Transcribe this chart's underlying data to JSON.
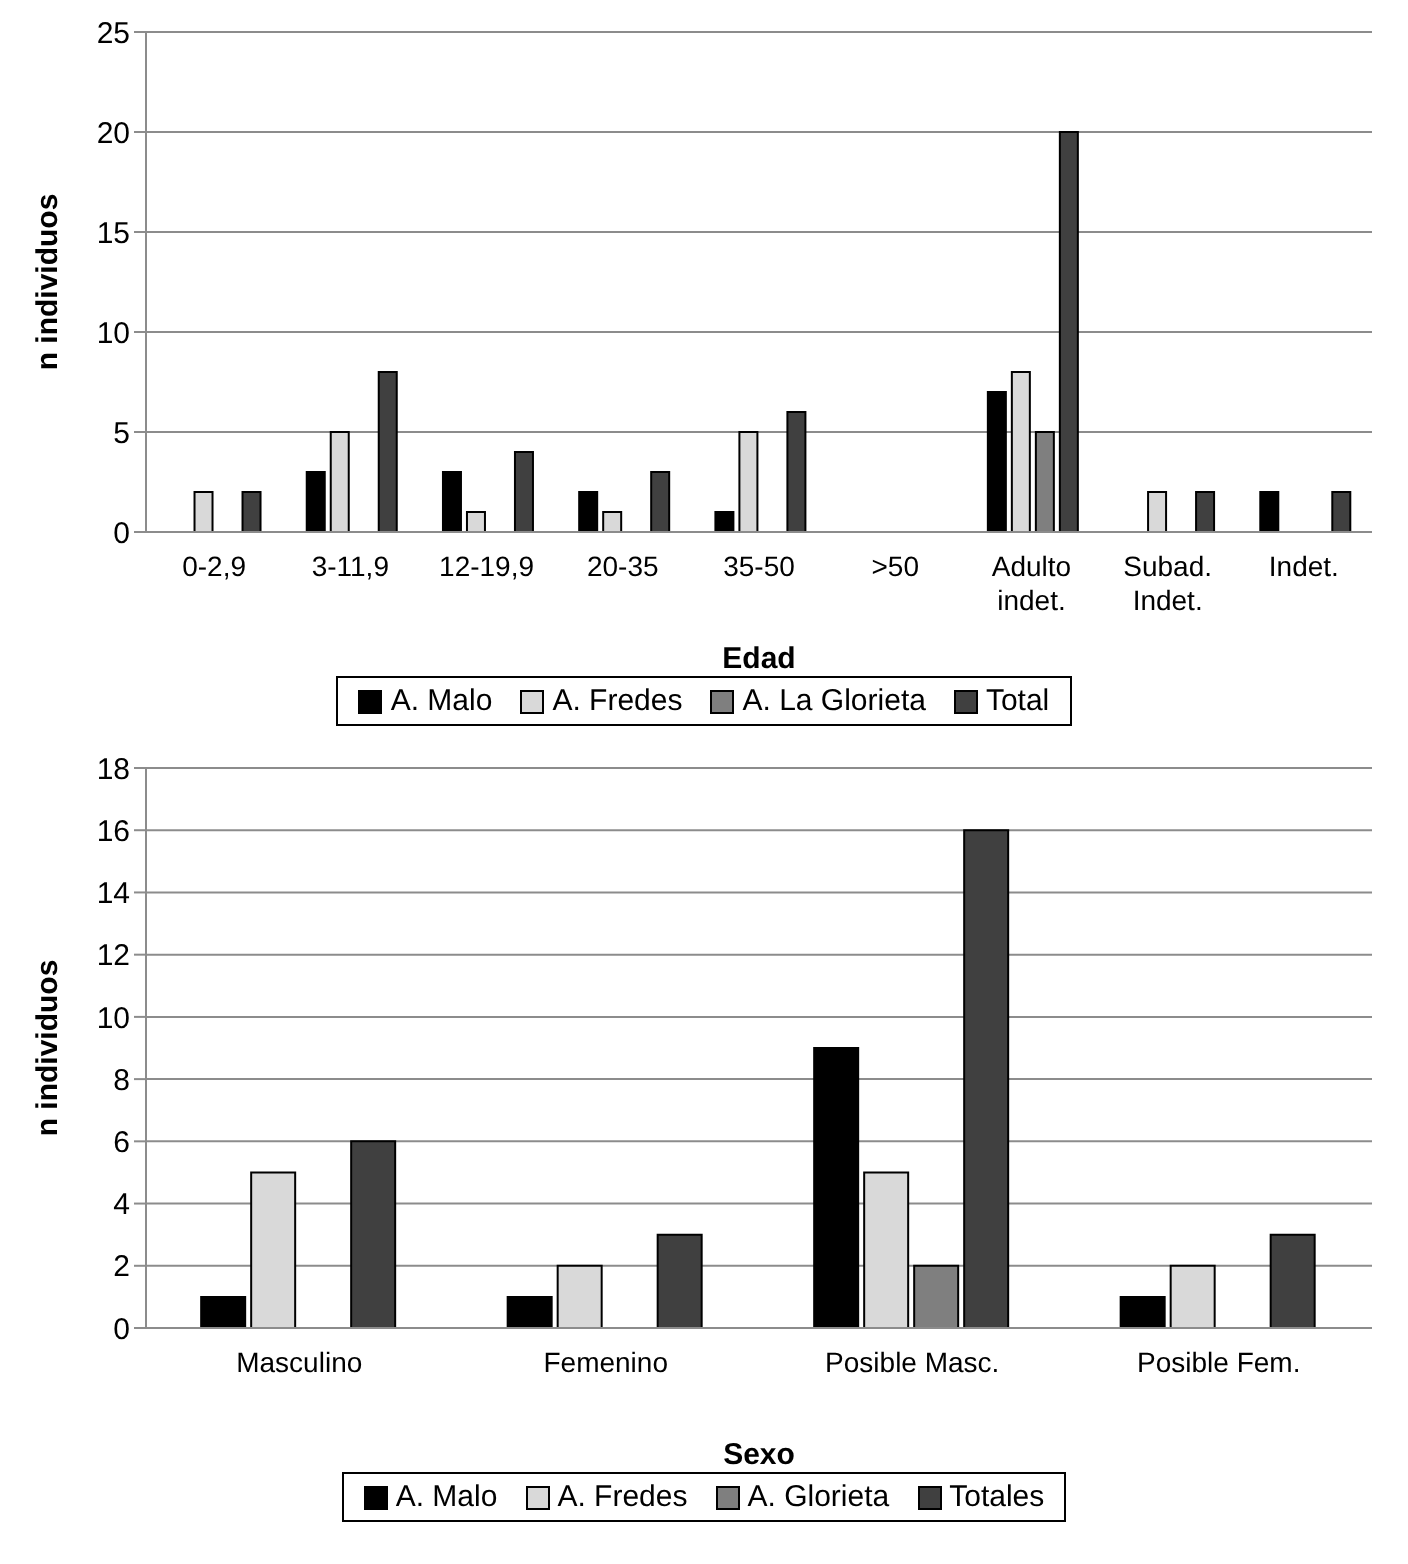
{
  "chart_data": [
    {
      "type": "bar",
      "xlabel": "Edad",
      "ylabel": "n individuos",
      "categories": [
        "0-2,9",
        "3-11,9",
        "12-19,9",
        "20-35",
        "35-50",
        ">50",
        "Adulto indet.",
        "Subad. Indet.",
        "Indet."
      ],
      "series": [
        {
          "name": "A. Malo",
          "color": "#000000",
          "values": [
            0,
            3,
            3,
            2,
            1,
            0,
            7,
            0,
            2
          ]
        },
        {
          "name": "A. Fredes",
          "color": "#d9d9d9",
          "values": [
            2,
            5,
            1,
            1,
            5,
            0,
            8,
            2,
            0
          ]
        },
        {
          "name": "A. La Glorieta",
          "color": "#7f7f7f",
          "values": [
            0,
            0,
            0,
            0,
            0,
            0,
            5,
            0,
            0
          ]
        },
        {
          "name": "Total",
          "color": "#404040",
          "values": [
            2,
            8,
            4,
            3,
            6,
            0,
            20,
            2,
            2
          ]
        }
      ],
      "ylim": [
        0,
        25
      ],
      "yticks": [
        0,
        5,
        10,
        15,
        20,
        25
      ],
      "grid": "y",
      "legend": "bottom"
    },
    {
      "type": "bar",
      "xlabel": "Sexo",
      "ylabel": "n individuos",
      "categories": [
        "Masculino",
        "Femenino",
        "Posible Masc.",
        "Posible Fem."
      ],
      "series": [
        {
          "name": "A. Malo",
          "color": "#000000",
          "values": [
            1,
            1,
            9,
            1
          ]
        },
        {
          "name": "A. Fredes",
          "color": "#d9d9d9",
          "values": [
            5,
            2,
            5,
            2
          ]
        },
        {
          "name": "A. Glorieta",
          "color": "#7f7f7f",
          "values": [
            0,
            0,
            2,
            0
          ]
        },
        {
          "name": "Totales",
          "color": "#404040",
          "values": [
            6,
            3,
            16,
            3
          ]
        }
      ],
      "ylim": [
        0,
        18
      ],
      "yticks": [
        0,
        2,
        4,
        6,
        8,
        10,
        12,
        14,
        16,
        18
      ],
      "grid": "y",
      "legend": "bottom"
    }
  ]
}
